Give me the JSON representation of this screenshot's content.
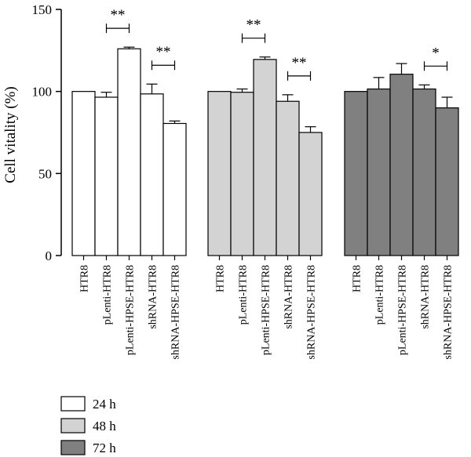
{
  "chart_data": {
    "type": "bar",
    "ylabel": "Cell vitality (%)",
    "ylim": [
      0,
      150
    ],
    "yticks": [
      0,
      50,
      100,
      150
    ],
    "categories": [
      "HTR8",
      "pLenti-HTR8",
      "pLenti-HPSE-HTR8",
      "shRNA-HTR8",
      "shRNA-HPSE-HTR8"
    ],
    "series": [
      {
        "name": "24 h",
        "color": "#ffffff",
        "values": [
          100,
          96.5,
          126,
          98.5,
          80.5
        ],
        "errors": [
          0,
          3,
          1,
          6,
          1.5
        ]
      },
      {
        "name": "48 h",
        "color": "#d3d3d3",
        "values": [
          100,
          99.5,
          119.5,
          94,
          75
        ],
        "errors": [
          0,
          2,
          1.5,
          4,
          3.5
        ]
      },
      {
        "name": "72 h",
        "color": "#808080",
        "values": [
          100,
          101.5,
          110.5,
          101.5,
          90
        ],
        "errors": [
          0,
          7,
          6.5,
          2.5,
          6.5
        ]
      }
    ],
    "significance": [
      {
        "series": 0,
        "from": 1,
        "to": 2,
        "label": "**"
      },
      {
        "series": 0,
        "from": 3,
        "to": 4,
        "label": "**"
      },
      {
        "series": 1,
        "from": 1,
        "to": 2,
        "label": "**"
      },
      {
        "series": 1,
        "from": 3,
        "to": 4,
        "label": "**"
      },
      {
        "series": 2,
        "from": 3,
        "to": 4,
        "label": "*"
      }
    ],
    "legend_position": "bottom-left"
  }
}
